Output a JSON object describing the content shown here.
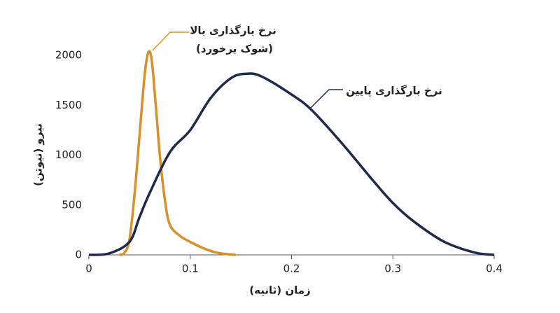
{
  "chart_data": {
    "type": "line",
    "x_label": "زمان (ثانیه)",
    "y_label": "نیرو (نیوتن)",
    "xlim": [
      0,
      0.4
    ],
    "xticks": [
      0,
      0.1,
      0.2,
      0.3,
      0.4
    ],
    "ylim": [
      0,
      2000
    ],
    "yticks": [
      0,
      500,
      1000,
      1500,
      2000
    ],
    "series": [
      {
        "name": "نرخ بارگذاری بالا",
        "name_line2": "(شوک برخورد)",
        "color": "#d4912c",
        "x": [
          0.03,
          0.035,
          0.04,
          0.045,
          0.05,
          0.055,
          0.0587,
          0.062,
          0.066,
          0.07,
          0.075,
          0.08,
          0.09,
          0.1,
          0.11,
          0.12,
          0.13,
          0.145
        ],
        "values": [
          0,
          20,
          150,
          600,
          1200,
          1800,
          2030,
          1950,
          1500,
          1000,
          550,
          300,
          190,
          130,
          80,
          40,
          15,
          0
        ]
      },
      {
        "name": "نرخ بارگذاری پایین",
        "color": "#1f2a4a",
        "x": [
          0,
          0.02,
          0.04,
          0.05,
          0.06,
          0.08,
          0.1,
          0.12,
          0.14,
          0.155,
          0.17,
          0.2,
          0.22,
          0.25,
          0.28,
          0.3,
          0.32,
          0.35,
          0.38,
          0.4
        ],
        "values": [
          0,
          15,
          130,
          380,
          620,
          1030,
          1250,
          1570,
          1770,
          1815,
          1790,
          1607,
          1450,
          1115,
          750,
          520,
          340,
          135,
          25,
          0
        ]
      }
    ]
  }
}
